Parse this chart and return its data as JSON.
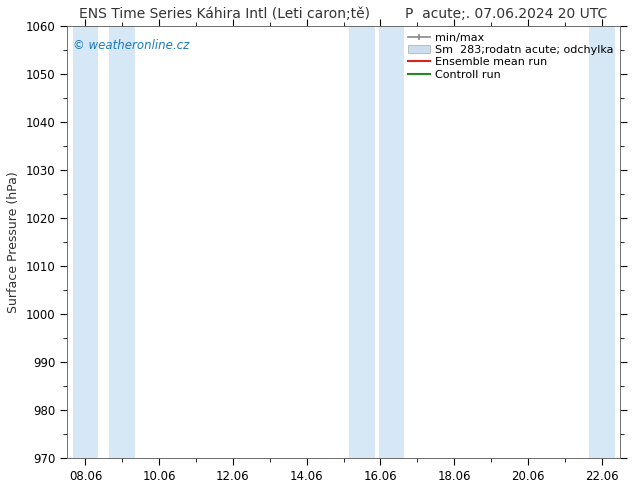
{
  "title_left": "ENS Time Series Káhira Intl (Leti caron;tě)",
  "title_right": "P  acute;. 07.06.2024 20 UTC",
  "ylabel": "Surface Pressure (hPa)",
  "ylim": [
    970,
    1060
  ],
  "yticks": [
    970,
    980,
    990,
    1000,
    1010,
    1020,
    1030,
    1040,
    1050,
    1060
  ],
  "xtick_labels": [
    "08.06",
    "10.06",
    "12.06",
    "14.06",
    "16.06",
    "18.06",
    "20.06",
    "22.06"
  ],
  "xtick_positions": [
    0,
    2,
    4,
    6,
    8,
    10,
    12,
    14
  ],
  "bg_color": "#ffffff",
  "plot_bg_color": "#ffffff",
  "band_color": "#d6e8f5",
  "band_positions": [
    0,
    1,
    7,
    8,
    14,
    15
  ],
  "watermark": "© weatheronline.cz",
  "watermark_color": "#1a7abf",
  "legend_entries": [
    "min/max",
    "Sm  283;rodatn acute; odchylka",
    "Ensemble mean run",
    "Controll run"
  ],
  "legend_line_color": "#888888",
  "legend_patch_color": "#ccddee",
  "legend_red": "#dd2222",
  "legend_green": "#228822",
  "title_fontsize": 10,
  "axis_label_fontsize": 9,
  "tick_fontsize": 8.5,
  "legend_fontsize": 8,
  "spine_color": "#555555"
}
